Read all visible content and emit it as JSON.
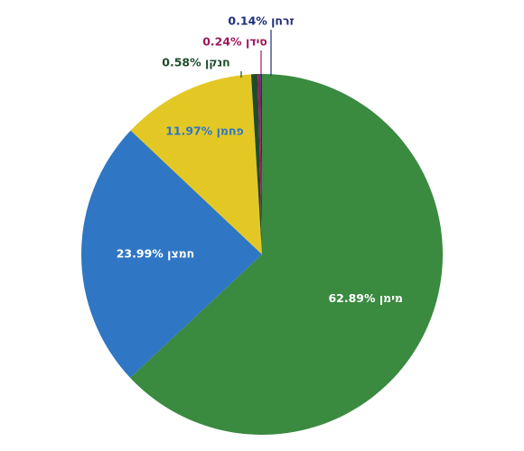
{
  "chart_data": {
    "type": "pie",
    "title": "",
    "slices": [
      {
        "label": "מימן",
        "value": 62.89,
        "value_text": "62.89%",
        "color": "#3a8a3f",
        "label_color": "#ffffff"
      },
      {
        "label": "חמצן",
        "value": 23.99,
        "value_text": "23.99%",
        "color": "#2f76c4",
        "label_color": "#ffffff"
      },
      {
        "label": "פחמן",
        "value": 11.97,
        "value_text": "11.97%",
        "color": "#e3c825",
        "label_color": "#2f76c4"
      },
      {
        "label": "חנקן",
        "value": 0.58,
        "value_text": "0.58%",
        "color": "#1f4d2b",
        "label_color": "#1f4d2b"
      },
      {
        "label": "סידן",
        "value": 0.24,
        "value_text": "0.24%",
        "color": "#9e1a5a",
        "label_color": "#9e1a5a"
      },
      {
        "label": "זרחן",
        "value": 0.14,
        "value_text": "0.14%",
        "color": "#1f2f7a",
        "label_color": "#1f2f7a"
      }
    ]
  }
}
